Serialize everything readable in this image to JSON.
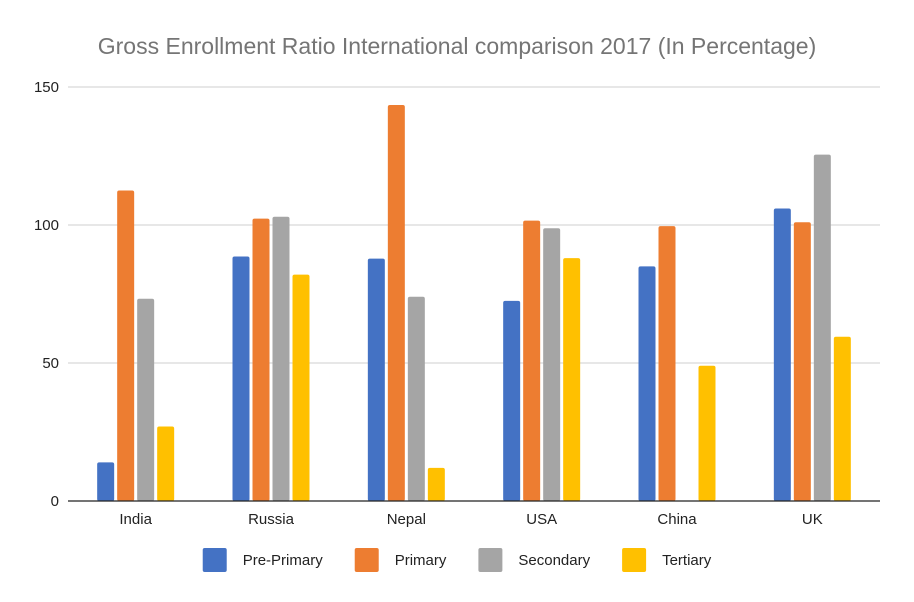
{
  "chart_data": {
    "type": "bar",
    "title": "Gross Enrollment Ratio International comparison 2017 (In Percentage)",
    "xlabel": "",
    "ylabel": "",
    "ylim": [
      0,
      150
    ],
    "yticks": [
      0,
      50,
      100,
      150
    ],
    "grid": true,
    "legend_position": "bottom",
    "categories": [
      "India",
      "Russia",
      "Nepal",
      "USA",
      "China",
      "UK"
    ],
    "series": [
      {
        "name": "Pre-Primary",
        "color": "#4472C4",
        "values": [
          14,
          88.6,
          87.8,
          72.5,
          85,
          106
        ]
      },
      {
        "name": "Primary",
        "color": "#ED7D31",
        "values": [
          112.5,
          102.3,
          143.5,
          101.6,
          99.6,
          101
        ]
      },
      {
        "name": "Secondary",
        "color": "#A5A5A5",
        "values": [
          73.3,
          103,
          74,
          98.8,
          null,
          125.5
        ]
      },
      {
        "name": "Tertiary",
        "color": "#FFC000",
        "values": [
          27,
          82,
          12,
          88,
          49,
          59.5
        ]
      }
    ]
  }
}
